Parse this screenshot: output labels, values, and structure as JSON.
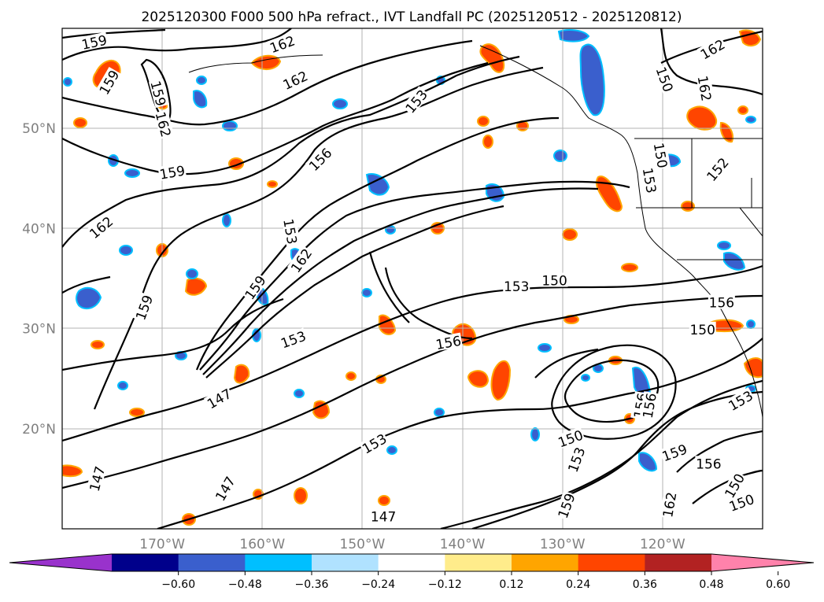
{
  "title": "2025120300 F000 500 hPa refract., IVT Landfall PC (2025120512 - 2025120812)",
  "map": {
    "lon_range": [
      -180,
      -110
    ],
    "lat_range": [
      10,
      60
    ],
    "lat_ticks": [
      {
        "value": 20,
        "label": "20°N"
      },
      {
        "value": 30,
        "label": "30°N"
      },
      {
        "value": 40,
        "label": "40°N"
      },
      {
        "value": 50,
        "label": "50°N"
      }
    ],
    "lon_ticks": [
      {
        "value": -170,
        "label": "170°W"
      },
      {
        "value": -160,
        "label": "160°W"
      },
      {
        "value": -150,
        "label": "150°W"
      },
      {
        "value": -140,
        "label": "140°W"
      },
      {
        "value": -130,
        "label": "130°W"
      },
      {
        "value": -120,
        "label": "120°W"
      }
    ],
    "grid": true
  },
  "contour_labels": [
    {
      "text": "159",
      "lon": -176.8,
      "lat": 58.6,
      "rot": -12
    },
    {
      "text": "162",
      "lon": -158.0,
      "lat": 58.4,
      "rot": -20
    },
    {
      "text": "159",
      "lon": -175.3,
      "lat": 54.6,
      "rot": -60
    },
    {
      "text": "159",
      "lon": -170.4,
      "lat": 53.5,
      "rot": 75
    },
    {
      "text": "162",
      "lon": -169.9,
      "lat": 50.4,
      "rot": 75
    },
    {
      "text": "162",
      "lon": -156.7,
      "lat": 54.8,
      "rot": -25
    },
    {
      "text": "153",
      "lon": -144.6,
      "lat": 52.7,
      "rot": -50
    },
    {
      "text": "159",
      "lon": -169.0,
      "lat": 45.6,
      "rot": -10
    },
    {
      "text": "156",
      "lon": -154.2,
      "lat": 46.9,
      "rot": -45
    },
    {
      "text": "153",
      "lon": -157.2,
      "lat": 39.7,
      "rot": 80
    },
    {
      "text": "162",
      "lon": -156.1,
      "lat": 36.8,
      "rot": -55
    },
    {
      "text": "162",
      "lon": -176.1,
      "lat": 40.1,
      "rot": -40
    },
    {
      "text": "159",
      "lon": -171.8,
      "lat": 32.1,
      "rot": -70
    },
    {
      "text": "159",
      "lon": -160.7,
      "lat": 34.1,
      "rot": -55
    },
    {
      "text": "153",
      "lon": -156.9,
      "lat": 28.9,
      "rot": -20
    },
    {
      "text": "147",
      "lon": -164.3,
      "lat": 23.0,
      "rot": -30
    },
    {
      "text": "153",
      "lon": -134.6,
      "lat": 34.2,
      "rot": 0
    },
    {
      "text": "150",
      "lon": -130.8,
      "lat": 34.8,
      "rot": 0
    },
    {
      "text": "156",
      "lon": -141.4,
      "lat": 28.6,
      "rot": -10
    },
    {
      "text": "156",
      "lon": -114.1,
      "lat": 32.6,
      "rot": 0
    },
    {
      "text": "150",
      "lon": -116.0,
      "lat": 29.9,
      "rot": 0
    },
    {
      "text": "162",
      "lon": -115.0,
      "lat": 57.9,
      "rot": -30
    },
    {
      "text": "162",
      "lon": -115.8,
      "lat": 54.0,
      "rot": 80
    },
    {
      "text": "152",
      "lon": -114.5,
      "lat": 45.9,
      "rot": -50
    },
    {
      "text": "150",
      "lon": -119.8,
      "lat": 54.9,
      "rot": 70
    },
    {
      "text": "153",
      "lon": -121.3,
      "lat": 44.8,
      "rot": 80
    },
    {
      "text": "150",
      "lon": -120.2,
      "lat": 47.3,
      "rot": 80
    },
    {
      "text": "156",
      "lon": -122.2,
      "lat": 22.3,
      "rot": -80
    },
    {
      "text": "156",
      "lon": -121.3,
      "lat": 22.3,
      "rot": -80
    },
    {
      "text": "150",
      "lon": -129.2,
      "lat": 19.0,
      "rot": -20
    },
    {
      "text": "159",
      "lon": -118.8,
      "lat": 17.6,
      "rot": -20
    },
    {
      "text": "156",
      "lon": -115.4,
      "lat": 16.5,
      "rot": 0
    },
    {
      "text": "153",
      "lon": -128.6,
      "lat": 16.9,
      "rot": -70
    },
    {
      "text": "153",
      "lon": -148.8,
      "lat": 18.5,
      "rot": -30
    },
    {
      "text": "147",
      "lon": -176.5,
      "lat": 15.0,
      "rot": -75
    },
    {
      "text": "147",
      "lon": -163.7,
      "lat": 14.0,
      "rot": -60
    },
    {
      "text": "147",
      "lon": -147.9,
      "lat": 11.2,
      "rot": 0
    },
    {
      "text": "162",
      "lon": -119.3,
      "lat": 12.4,
      "rot": -80
    },
    {
      "text": "150",
      "lon": -112.1,
      "lat": 12.6,
      "rot": -20
    },
    {
      "text": "150",
      "lon": -112.8,
      "lat": 14.3,
      "rot": -60
    },
    {
      "text": "153",
      "lon": -112.2,
      "lat": 22.8,
      "rot": -30
    },
    {
      "text": "159",
      "lon": -129.6,
      "lat": 12.3,
      "rot": -70
    }
  ],
  "colorbar": {
    "colors": [
      "#9932cc",
      "#00008b",
      "#3a5fcd",
      "#00bfff",
      "#b0e2ff",
      "#ffffff",
      "#ffec8b",
      "#ffa500",
      "#ff4500",
      "#b22222",
      "#ff82ab"
    ],
    "tick_labels": [
      "−0.60",
      "−0.48",
      "−0.36",
      "−0.24",
      "−0.12",
      "0.12",
      "0.24",
      "0.36",
      "0.48",
      "0.60"
    ]
  }
}
